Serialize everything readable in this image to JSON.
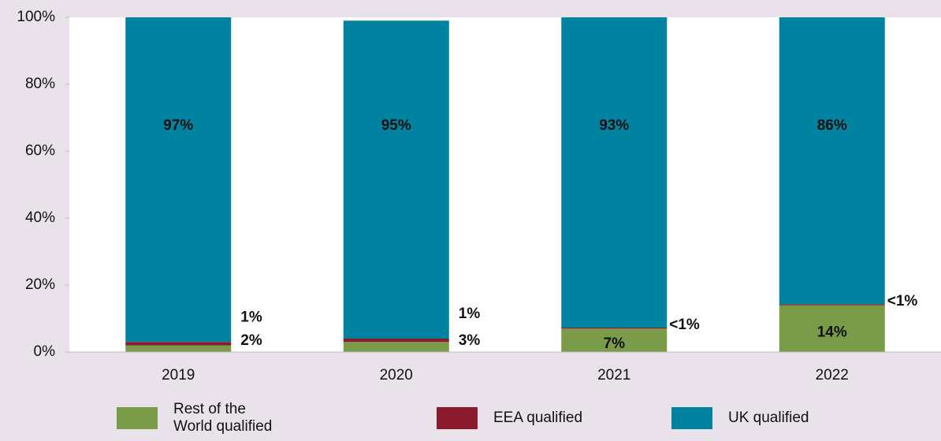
{
  "chart_data": {
    "type": "stacked_bar",
    "categories": [
      "2019",
      "2020",
      "2021",
      "2022"
    ],
    "series": [
      {
        "name": "Rest of the World qualified",
        "color": "#7a9b48",
        "values": [
          2,
          3,
          7,
          14
        ],
        "value_labels": [
          "2%",
          "3%",
          "7%",
          "14%"
        ]
      },
      {
        "name": "EEA qualified",
        "color": "#8b1a2f",
        "values": [
          1,
          1,
          0.3,
          0.3
        ],
        "value_labels": [
          "1%",
          "1%",
          "<1%",
          "<1%"
        ]
      },
      {
        "name": "UK qualified",
        "color": "#0082a1",
        "values": [
          97,
          95,
          93,
          86
        ],
        "value_labels": [
          "97%",
          "95%",
          "93%",
          "86%"
        ]
      }
    ],
    "ylim": [
      0,
      100
    ],
    "yticks": [
      {
        "value": 0,
        "label": "0%"
      },
      {
        "value": 20,
        "label": "20%"
      },
      {
        "value": 40,
        "label": "40%"
      },
      {
        "value": 60,
        "label": "60%"
      },
      {
        "value": 80,
        "label": "80%"
      },
      {
        "value": 100,
        "label": "100%"
      }
    ],
    "grid": false
  }
}
